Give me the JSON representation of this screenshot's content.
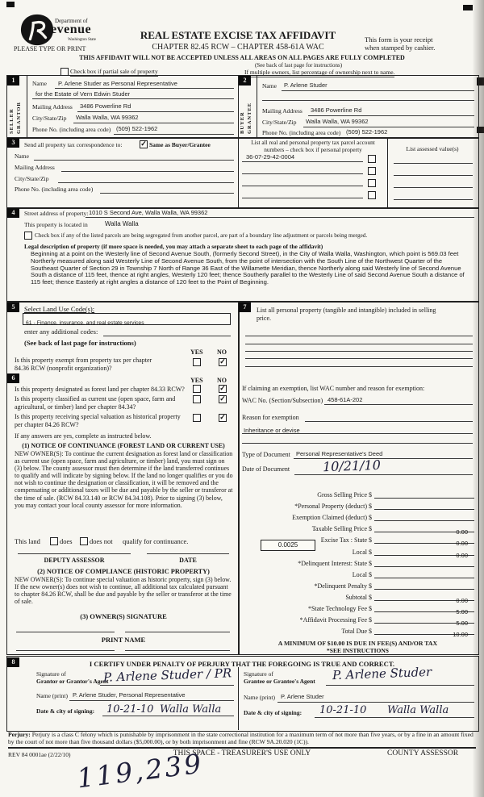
{
  "page": {
    "logo": {
      "department_of": "Department of",
      "revenue": "evenue",
      "state": "Washington State"
    },
    "please_type": "PLEASE TYPE OR PRINT",
    "title": "REAL ESTATE EXCISE TAX AFFIDAVIT",
    "chapter": "CHAPTER 82.45 RCW – CHAPTER 458-61A WAC",
    "notice": "THIS AFFIDAVIT WILL NOT BE ACCEPTED UNLESS ALL AREAS ON ALL PAGES ARE FULLY COMPLETED",
    "see_back": "(See back of last page for instructions)",
    "receipt1": "This form is your receipt",
    "receipt2": "when stamped by cashier.",
    "partial_sale": "Check box if partial sale of property",
    "multiple_owners": "If multiple owners, list percentage of ownership next to name."
  },
  "s1": {
    "num": "1",
    "side1": "SELLER",
    "side2": "GRANTOR",
    "name_label": "Name",
    "name1": "P. Arlene Studer as Personal Representative",
    "name2": "for the Estate of Vern Edwin Studer",
    "mail_label": "Mailing Address",
    "mail": "3486 Powerline Rd",
    "city_label": "City/State/Zip",
    "city": "Walla Walla, WA  99362",
    "phone_label": "Phone No. (including area code)",
    "phone": "(509) 522-1962"
  },
  "s2": {
    "num": "2",
    "side1": "BUYER",
    "side2": "GRANTEE",
    "name_label": "Name",
    "name": "P. Arlene Studer",
    "mail_label": "Mailing Address",
    "mail": "3486 Powerline Rd",
    "city_label": "City/State/Zip",
    "city": "Walla Walla, WA  99362",
    "phone_label": "Phone No. (including area code)",
    "phone": "(509) 522-1962"
  },
  "s3": {
    "num": "3",
    "send_label": "Send all property tax correspondence to:",
    "same_as": "Same as Buyer/Grantee",
    "name_label": "Name",
    "mail_label": "Mailing Address",
    "city_label": "City/State/Zip",
    "phone_label": "Phone No. (including area code)",
    "parcel_header1": "List all real and personal property tax parcel account",
    "parcel_header2": "numbers – check box if personal property",
    "parcel1": "36-07-29-42-0004",
    "assessed_header": "List assessed value(s)"
  },
  "s4": {
    "num": "4",
    "street_label": "Street address of property:",
    "street": "1010 S Second Ave, Walla Walla, WA 99362",
    "located_label": "This property is located in",
    "located": "Walla Walla",
    "segregated": "Check box if any of the listed parcels are being segregated from another parcel, are part of a boundary line adjustment or parcels being merged.",
    "legal_label": "Legal description of property (if more space is needed, you may attach a separate sheet to each page of the affidavit)",
    "legal": "Beginning at a point on the Westerly line of Second Avenue South, (formerly Second Street), in the City of Walla Walla, Washington, which point is 569.03 feet Northerly measured along said Westerly Line of Second Avenue South, from the point of intersection with the South Line of the Northwest Quarter of the Southeast Quarter of Section 29 in Township 7 North of Range 36 East of the Willamette Meridian, thence Northerly along said Westerly line of Second Avenue South a distance of 115 feet, thence at right angles, Westerly 120 feet; thence Southerly parallel to the Westerly Line of said Second Avenue South a distance of 115 feet; thence Easterly at right angles a distance of 120 feet to the Point of Beginning."
  },
  "s5": {
    "num": "5",
    "select_label": "Select Land Use Code(s):",
    "code": "61 - Finance, insurance, and real estate services",
    "additional": "enter any additional codes:",
    "see_back": "(See back of last page for instructions)",
    "yes": "YES",
    "no": "NO",
    "q_exempt1": "Is this property exempt from property tax per chapter",
    "q_exempt2": "84.36 RCW (nonprofit organization)?"
  },
  "s6": {
    "num": "6",
    "yes": "YES",
    "no": "NO",
    "q_forest": "Is this property designated as forest land per chapter 84.33 RCW?",
    "q_current1": "Is this property classified as current use (open space, farm and",
    "q_current2": "agricultural, or timber) land per chapter 84.34?",
    "q_historic1": "Is this property receiving special valuation as historical property",
    "q_historic2": "per chapter 84.26 RCW?",
    "if_yes": "If any answers are yes, complete as instructed below.",
    "cont_title": "(1) NOTICE OF CONTINUANCE (FOREST LAND OR CURRENT USE)",
    "cont_text": "NEW OWNER(S): To continue the current designation as forest land or classification as current use (open space, farm and agriculture, or timber) land, you must sign on (3) below. The county assessor must then determine if the land transferred continues to qualify and will indicate by signing below. If the land no longer qualifies or you do not wish to continue the designation or classification, it will be removed and the compensating or additional taxes will be due and payable by the seller or transferor at the time of sale. (RCW 84.33.140 or RCW 84.34.108). Prior to signing (3) below, you may contact your local county assessor for more information.",
    "this_land": "This land",
    "does": "does",
    "does_not": "does not",
    "qualify": "qualify for continuance.",
    "deputy": "DEPUTY ASSESSOR",
    "date": "DATE",
    "comp_title": "(2) NOTICE OF COMPLIANCE (HISTORIC PROPERTY)",
    "comp_text": "NEW OWNER(S): To continue special valuation as historic property, sign (3) below. If the new owner(s) does not wish to continue, all additional tax calculated pursuant to chapter 84.26 RCW, shall be due and payable by the seller or transferor at the time of sale.",
    "owners_sig": "(3) OWNER(S) SIGNATURE",
    "print_name": "PRINT NAME"
  },
  "s7": {
    "num": "7",
    "list_personal1": "List all  personal property (tangible and intangible) included in selling",
    "list_personal2": "price.",
    "exemption_label": "If claiming an exemption, list WAC number and reason for exemption:",
    "wac_label": "WAC No. (Section/Subsection)",
    "wac": "458-61A-202",
    "reason_label": "Reason for exemption",
    "reason": "Inheritance or devise",
    "type_label": "Type of Document",
    "type": "Personal Representative's Deed",
    "date_label": "Date of Document",
    "date": "10/21/10",
    "rate": "0.0025",
    "money": [
      {
        "label": "Gross Selling Price",
        "value": ""
      },
      {
        "label": "*Personal Property (deduct)",
        "value": ""
      },
      {
        "label": "Exemption Claimed (deduct)",
        "value": ""
      },
      {
        "label": "Taxable Selling Price",
        "value": "0.00"
      },
      {
        "label": "Excise Tax : State",
        "value": "0.00"
      },
      {
        "label": "Local",
        "value": "0.00"
      },
      {
        "label": "*Delinquent Interest: State",
        "value": ""
      },
      {
        "label": "Local",
        "value": ""
      },
      {
        "label": "*Delinquent Penalty",
        "value": ""
      },
      {
        "label": "Subtotal",
        "value": "0.00"
      },
      {
        "label": "*State Technology Fee",
        "value": "5.00"
      },
      {
        "label": "*Affidavit Processing Fee",
        "value": "5.00"
      },
      {
        "label": "Total Due",
        "value": "10.00"
      }
    ],
    "minimum": "A MINIMUM OF $10.00 IS DUE IN FEE(S) AND/OR TAX",
    "see_instructions": "*SEE INSTRUCTIONS"
  },
  "s8": {
    "num": "8",
    "certify": "I CERTIFY UNDER PENALTY OF PERJURY THAT THE FOREGOING IS TRUE AND CORRECT.",
    "sig_of": "Signature of",
    "grantor_label": "Grantor or Grantor's Agent",
    "grantor_sig": "P. Arlene Studer / PR",
    "name_print": "Name (print)",
    "grantor_name": "P. Arlene Studer, Personal Representative",
    "date_city": "Date & city of signing:",
    "grantor_date": "10-21-10",
    "grantor_city": "Walla Walla",
    "grantee_label": "Grantee or Grantee's Agent",
    "grantee_sig": "P. Arlene Studer",
    "grantee_name": "P. Arlene Studer",
    "grantee_date": "10-21-10",
    "grantee_city": "Walla Walla"
  },
  "footer": {
    "perjury_label": "Perjury:",
    "perjury": "Perjury is a class C felony which is punishable by imprisonment in the state correctional institution for a maximum term of not more than five years, or by a fine in an amount fixed by the court of not more than five thousand dollars ($5,000.00), or by both imprisonment and fine (RCW 9A.20.020 (1C)).",
    "rev": "REV 84 0001ae (2/22/10)",
    "treasurer": "THIS SPACE - TREASURER'S USE ONLY",
    "assessor": "COUNTY ASSESSOR",
    "stamp": "119,239"
  },
  "checks": {
    "partial_sale": false,
    "same_as_buyer": true,
    "segregated": false,
    "exempt_yes": false,
    "exempt_no": true,
    "forest_yes": false,
    "forest_no": true,
    "current_yes": false,
    "current_no": true,
    "historic_yes": false,
    "historic_no": true,
    "land_does": false,
    "land_does_not": false,
    "parcel1": false,
    "parcel2": false,
    "parcel3": false,
    "parcel4": false
  }
}
